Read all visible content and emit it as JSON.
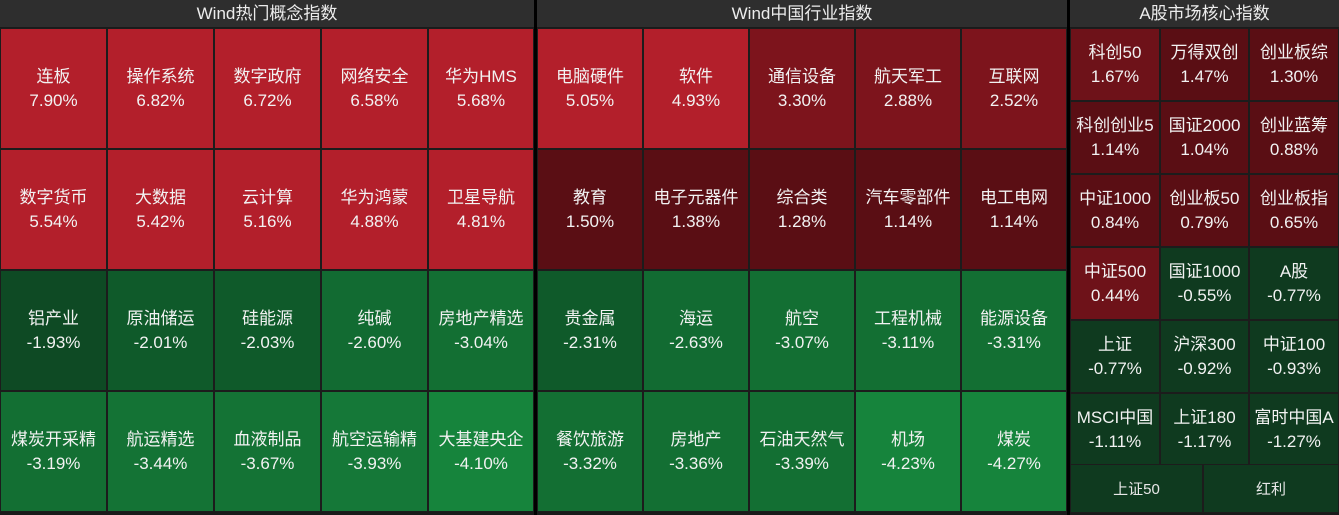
{
  "panels": [
    {
      "title": "Wind热门概念指数",
      "tiles": [
        {
          "name": "连板",
          "value": "7.90%",
          "color": "#b31f2b"
        },
        {
          "name": "操作系统",
          "value": "6.82%",
          "color": "#b31f2b"
        },
        {
          "name": "数字政府",
          "value": "6.72%",
          "color": "#b31f2b"
        },
        {
          "name": "网络安全",
          "value": "6.58%",
          "color": "#b31f2b"
        },
        {
          "name": "华为HMS",
          "value": "5.68%",
          "color": "#b31f2b"
        },
        {
          "name": "数字货币",
          "value": "5.54%",
          "color": "#b31f2b"
        },
        {
          "name": "大数据",
          "value": "5.42%",
          "color": "#b31f2b"
        },
        {
          "name": "云计算",
          "value": "5.16%",
          "color": "#b31f2b"
        },
        {
          "name": "华为鸿蒙",
          "value": "4.88%",
          "color": "#b31f2b"
        },
        {
          "name": "卫星导航",
          "value": "4.81%",
          "color": "#b31f2b"
        },
        {
          "name": "铝产业",
          "value": "-1.93%",
          "color": "#0e4a24"
        },
        {
          "name": "原油储运",
          "value": "-2.01%",
          "color": "#0f5a2a"
        },
        {
          "name": "硅能源",
          "value": "-2.03%",
          "color": "#0f5a2a"
        },
        {
          "name": "纯碱",
          "value": "-2.60%",
          "color": "#126b32"
        },
        {
          "name": "房地产精选",
          "value": "-3.04%",
          "color": "#136f33"
        },
        {
          "name": "煤炭开采精",
          "value": "-3.19%",
          "color": "#136f33"
        },
        {
          "name": "航运精选",
          "value": "-3.44%",
          "color": "#147335"
        },
        {
          "name": "血液制品",
          "value": "-3.67%",
          "color": "#147335"
        },
        {
          "name": "航空运输精",
          "value": "-3.93%",
          "color": "#157838"
        },
        {
          "name": "大基建央企",
          "value": "-4.10%",
          "color": "#16843c"
        }
      ]
    },
    {
      "title": "Wind中国行业指数",
      "tiles": [
        {
          "name": "电脑硬件",
          "value": "5.05%",
          "color": "#b31f2b"
        },
        {
          "name": "软件",
          "value": "4.93%",
          "color": "#b31f2b"
        },
        {
          "name": "通信设备",
          "value": "3.30%",
          "color": "#7d141c"
        },
        {
          "name": "航天军工",
          "value": "2.88%",
          "color": "#7d141c"
        },
        {
          "name": "互联网",
          "value": "2.52%",
          "color": "#7d141c"
        },
        {
          "name": "教育",
          "value": "1.50%",
          "color": "#5a0e14"
        },
        {
          "name": "电子元器件",
          "value": "1.38%",
          "color": "#5a0e14"
        },
        {
          "name": "综合类",
          "value": "1.28%",
          "color": "#5a0e14"
        },
        {
          "name": "汽车零部件",
          "value": "1.14%",
          "color": "#5a0e14"
        },
        {
          "name": "电工电网",
          "value": "1.14%",
          "color": "#5a0e14"
        },
        {
          "name": "贵金属",
          "value": "-2.31%",
          "color": "#0f5a2a"
        },
        {
          "name": "海运",
          "value": "-2.63%",
          "color": "#126b32"
        },
        {
          "name": "航空",
          "value": "-3.07%",
          "color": "#136f33"
        },
        {
          "name": "工程机械",
          "value": "-3.11%",
          "color": "#136f33"
        },
        {
          "name": "能源设备",
          "value": "-3.31%",
          "color": "#136f33"
        },
        {
          "name": "餐饮旅游",
          "value": "-3.32%",
          "color": "#136f33"
        },
        {
          "name": "房地产",
          "value": "-3.36%",
          "color": "#136f33"
        },
        {
          "name": "石油天然气",
          "value": "-3.39%",
          "color": "#136f33"
        },
        {
          "name": "机场",
          "value": "-4.23%",
          "color": "#16843c"
        },
        {
          "name": "煤炭",
          "value": "-4.27%",
          "color": "#16843c"
        }
      ]
    },
    {
      "title": "A股市场核心指数",
      "tiles": [
        {
          "name": "科创50",
          "value": "1.67%",
          "color": "#6e1219"
        },
        {
          "name": "万得双创",
          "value": "1.47%",
          "color": "#5a0e14"
        },
        {
          "name": "创业板综",
          "value": "1.30%",
          "color": "#5a0e14"
        },
        {
          "name": "科创创业5",
          "value": "1.14%",
          "color": "#5a0e14"
        },
        {
          "name": "国证2000",
          "value": "1.04%",
          "color": "#5a0e14"
        },
        {
          "name": "创业蓝筹",
          "value": "0.88%",
          "color": "#5a0e14"
        },
        {
          "name": "中证1000",
          "value": "0.84%",
          "color": "#5a0e14"
        },
        {
          "name": "创业板50",
          "value": "0.79%",
          "color": "#5a0e14"
        },
        {
          "name": "创业板指",
          "value": "0.65%",
          "color": "#5a0e14"
        },
        {
          "name": "中证500",
          "value": "0.44%",
          "color": "#6e1219"
        },
        {
          "name": "国证1000",
          "value": "-0.55%",
          "color": "#0f3a1f"
        },
        {
          "name": "A股",
          "value": "-0.77%",
          "color": "#0f3a1f"
        },
        {
          "name": "上证",
          "value": "-0.77%",
          "color": "#0f3a1f"
        },
        {
          "name": "沪深300",
          "value": "-0.92%",
          "color": "#0f3a1f"
        },
        {
          "name": "中证100",
          "value": "-0.93%",
          "color": "#0f3a1f"
        },
        {
          "name": "MSCI中国",
          "value": "-1.11%",
          "color": "#0f3a1f"
        },
        {
          "name": "上证180",
          "value": "-1.17%",
          "color": "#0f3a1f"
        },
        {
          "name": "富时中国A",
          "value": "-1.27%",
          "color": "#0f3a1f"
        }
      ],
      "footer": [
        "上证50",
        "红利"
      ]
    }
  ]
}
